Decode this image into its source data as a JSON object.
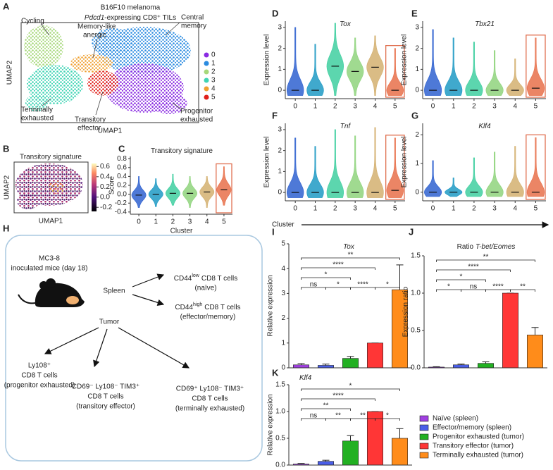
{
  "panel_labels": [
    "A",
    "B",
    "C",
    "D",
    "E",
    "F",
    "G",
    "H",
    "I",
    "J",
    "K"
  ],
  "umap": {
    "title": "B16F10 melanoma",
    "subtitle_gene": "Pdcd1",
    "subtitle_rest": "-expressing CD8⁺ TILs",
    "xlabel": "UMAP1",
    "ylabel": "UMAP2",
    "annotations": [
      "Cycling",
      "Memory-like",
      "anergic",
      "Central",
      "memory",
      "Terminally",
      "exhausted",
      "Transitory",
      "effector",
      "Progenitor",
      "exhausted"
    ],
    "legend": [
      {
        "name": "0",
        "color": "#8a2be2"
      },
      {
        "name": "1",
        "color": "#2b8be0"
      },
      {
        "name": "2",
        "color": "#a6d87a"
      },
      {
        "name": "3",
        "color": "#3fd4b4"
      },
      {
        "name": "4",
        "color": "#f0a030"
      },
      {
        "name": "5",
        "color": "#e0201a"
      }
    ]
  },
  "signature_umap": {
    "title": "Transitory signature",
    "xlabel": "UMAP1",
    "ylabel": "UMAP2",
    "clim": [
      -0.28,
      0.66
    ],
    "cticks": [
      0.6,
      0.4,
      0.2,
      {
        "value": 0,
        "label": "0.0"
      },
      -0.2
    ]
  },
  "cluster_axis_label": "Cluster",
  "diagram": {
    "mice": [
      "MC3-8",
      "inoculated mice (day 18)"
    ],
    "spleen": "Spleen",
    "tumor": "Tumor",
    "cd44low": {
      "marker": "CD44",
      "sup": "low",
      "rest": "CD8 T cells",
      "note": "(naïve)"
    },
    "cd44high": {
      "marker": "CD44",
      "sup": "high",
      "rest": "CD8 T cells",
      "note": "(effector/memory)"
    },
    "populations": [
      [
        "Ly108⁺",
        "CD8 T cells",
        "(progenitor exhausted)"
      ],
      [
        "CD69⁻ Ly108⁻ TIM3⁺",
        "CD8 T cells",
        "(transitory effector)"
      ],
      [
        "CD69⁺ Ly108⁻ TIM3⁺",
        "CD8 T cells",
        "(terminally exhausted)"
      ]
    ]
  },
  "bar_legend": [
    {
      "name": "Naïve (spleen)",
      "color": "#a040e0"
    },
    {
      "name": "Effector/memory (spleen)",
      "color": "#4a5ee8"
    },
    {
      "name": "Progenitor exhausted (tumor)",
      "color": "#22b022"
    },
    {
      "name": "Transitory effector (tumor)",
      "color": "#ff3636"
    },
    {
      "name": "Terminally exhausted (tumor)",
      "color": "#ff8c1a"
    }
  ],
  "chart_data": [
    {
      "type": "violin",
      "title": "Transitory signature",
      "xlabel": "Cluster",
      "ylabel": "Score",
      "categories": [
        "0",
        "1",
        "2",
        "3",
        "4",
        "5"
      ],
      "values": [
        -0.02,
        0,
        0.02,
        0.02,
        0.05,
        0.1
      ],
      "mins": [
        -0.3,
        -0.28,
        -0.25,
        -0.3,
        -0.3,
        -0.25
      ],
      "maxes": [
        0.4,
        0.35,
        0.45,
        0.4,
        0.4,
        0.62
      ],
      "colors": [
        "#2f62d0",
        "#1f9ac4",
        "#3fcfa0",
        "#8fd47c",
        "#d4b070",
        "#e8704a"
      ],
      "highlight": 5,
      "ylim": [
        -0.45,
        0.85
      ],
      "yticks": [
        0.8,
        0.6,
        0.4,
        0.2,
        {
          "value": 0,
          "label": "0.0"
        },
        -0.2,
        -0.4
      ]
    },
    {
      "type": "violin",
      "title_italic": "Tox",
      "ylabel": "Expression level",
      "categories": [
        "0",
        "1",
        "2",
        "3",
        "4",
        "5"
      ],
      "values": [
        0,
        0,
        1.15,
        0.9,
        1.1,
        0
      ],
      "mins": [
        -0.25,
        -0.25,
        -0.25,
        -0.25,
        -0.25,
        -0.25
      ],
      "maxes": [
        3.0,
        2.2,
        3.2,
        2.5,
        2.6,
        2.0
      ],
      "colors": [
        "#2f62d0",
        "#1f9ac4",
        "#3fcfa0",
        "#8fd47c",
        "#d4b070",
        "#e8704a"
      ],
      "highlight": 5,
      "ylim": [
        -0.4,
        3.3
      ],
      "yticks": [
        0,
        1,
        2,
        3
      ]
    },
    {
      "type": "violin",
      "title_italic": "Tbx21",
      "ylabel": "Expression level",
      "categories": [
        "0",
        "1",
        "2",
        "3",
        "4",
        "5"
      ],
      "values": [
        0,
        0,
        0,
        0,
        0,
        0.1
      ],
      "mins": [
        -0.25,
        -0.25,
        -0.25,
        -0.25,
        -0.25,
        -0.25
      ],
      "maxes": [
        2.9,
        2.5,
        2.3,
        1.9,
        1.5,
        2.5
      ],
      "colors": [
        "#2f62d0",
        "#1f9ac4",
        "#3fcfa0",
        "#8fd47c",
        "#d4b070",
        "#e8704a"
      ],
      "highlight": 5,
      "ylim": [
        -0.4,
        3.3
      ],
      "yticks": [
        0,
        1,
        2,
        3
      ]
    },
    {
      "type": "violin",
      "title_italic": "Tnf",
      "ylabel": "Expression level",
      "categories": [
        "0",
        "1",
        "2",
        "3",
        "4",
        "5"
      ],
      "values": [
        0,
        0,
        0,
        0,
        0,
        0.1
      ],
      "mins": [
        -0.25,
        -0.25,
        -0.25,
        -0.25,
        -0.25,
        -0.25
      ],
      "maxes": [
        2.6,
        2.2,
        3.0,
        2.7,
        3.1,
        2.6
      ],
      "colors": [
        "#2f62d0",
        "#1f9ac4",
        "#3fcfa0",
        "#8fd47c",
        "#d4b070",
        "#e8704a"
      ],
      "highlight": 5,
      "ylim": [
        -0.4,
        3.3
      ],
      "yticks": [
        0,
        1,
        2,
        3
      ]
    },
    {
      "type": "violin",
      "title_italic": "Klf4",
      "ylabel": "Expression level",
      "categories": [
        "0",
        "1",
        "2",
        "3",
        "4",
        "5"
      ],
      "values": [
        0,
        0,
        0,
        0,
        0,
        0
      ],
      "mins": [
        -0.15,
        -0.15,
        -0.15,
        -0.15,
        -0.15,
        -0.15
      ],
      "maxes": [
        1.1,
        0.5,
        1.2,
        1.4,
        1.6,
        1.9
      ],
      "colors": [
        "#2f62d0",
        "#1f9ac4",
        "#3fcfa0",
        "#8fd47c",
        "#d4b070",
        "#e8704a"
      ],
      "highlight": 5,
      "ylim": [
        -0.3,
        2.4
      ],
      "yticks": [
        0,
        1,
        2
      ]
    },
    {
      "type": "bar",
      "title_italic": "Tox",
      "ylabel": "Relative expression",
      "values": [
        0.12,
        0.1,
        0.38,
        1.0,
        3.15
      ],
      "errors": [
        0.05,
        0.05,
        0.08,
        0,
        1.0
      ],
      "ylim": [
        0,
        5
      ],
      "yticks": [
        0,
        1,
        2,
        3,
        4,
        5
      ],
      "brackets": [
        {
          "from": 0,
          "to": 1,
          "label": "ns"
        },
        {
          "from": 1,
          "to": 2,
          "label": "*"
        },
        {
          "from": 0,
          "to": 2,
          "label": "*"
        },
        {
          "from": 2,
          "to": 3,
          "label": "****"
        },
        {
          "from": 3,
          "to": 4,
          "label": "*"
        },
        {
          "from": 0,
          "to": 3,
          "label": "****"
        },
        {
          "from": 0,
          "to": 4,
          "label": "**"
        }
      ]
    },
    {
      "type": "bar",
      "title": "Ratio",
      "title_italic": "T-bet/Eomes",
      "ylabel": "Expression ratio",
      "values": [
        0.01,
        0.04,
        0.06,
        1.0,
        0.44
      ],
      "errors": [
        0.005,
        0.01,
        0.02,
        0,
        0.1
      ],
      "ylim": [
        0,
        1.5
      ],
      "yticks": [
        {
          "value": 0,
          "label": "0.0"
        },
        0.5,
        {
          "value": 1,
          "label": "1.0"
        },
        1.5
      ],
      "brackets": [
        {
          "from": 0,
          "to": 1,
          "label": "*"
        },
        {
          "from": 1,
          "to": 2,
          "label": "ns"
        },
        {
          "from": 0,
          "to": 2,
          "label": "*"
        },
        {
          "from": 2,
          "to": 3,
          "label": "****"
        },
        {
          "from": 3,
          "to": 4,
          "label": "**"
        },
        {
          "from": 0,
          "to": 3,
          "label": "****"
        },
        {
          "from": 0,
          "to": 4,
          "label": "**"
        }
      ]
    },
    {
      "type": "bar",
      "title_italic": "Klf4",
      "ylabel": "Relative expression",
      "values": [
        0.02,
        0.07,
        0.45,
        1.0,
        0.5
      ],
      "errors": [
        0.01,
        0.02,
        0.1,
        0,
        0.18
      ],
      "ylim": [
        0,
        1.5
      ],
      "yticks": [
        {
          "value": 0,
          "label": "0.0"
        },
        0.5,
        {
          "value": 1,
          "label": "1.0"
        },
        1.5
      ],
      "brackets": [
        {
          "from": 0,
          "to": 1,
          "label": "ns"
        },
        {
          "from": 1,
          "to": 2,
          "label": "**"
        },
        {
          "from": 0,
          "to": 2,
          "label": "**"
        },
        {
          "from": 2,
          "to": 3,
          "label": "**"
        },
        {
          "from": 3,
          "to": 4,
          "label": "*"
        },
        {
          "from": 0,
          "to": 3,
          "label": "****"
        },
        {
          "from": 0,
          "to": 4,
          "label": "*"
        }
      ]
    }
  ]
}
